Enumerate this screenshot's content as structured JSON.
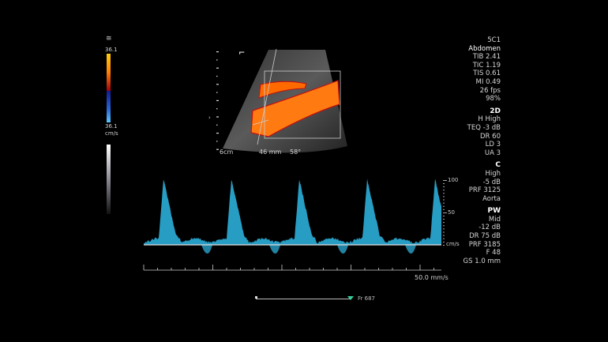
{
  "probe": {
    "transducer": "5C1",
    "preset": "Abdomen",
    "tib": "TIB 2.41",
    "tic": "TIC 1.19",
    "tis": "TIS 0.61",
    "mi": "MI 0.49",
    "fps": "26 fps",
    "power": "98%"
  },
  "mode_2d": {
    "title": "2D",
    "items": [
      "H High",
      "TEQ -3 dB",
      "DR 60",
      "LD 3",
      "UA 3"
    ]
  },
  "mode_c": {
    "title": "C",
    "items": [
      "High",
      "-5 dB",
      "PRF 3125",
      "Aorta"
    ]
  },
  "mode_pw": {
    "title": "PW",
    "items": [
      "Mid",
      "-12 dB",
      "DR 75 dB",
      "PRF 3185",
      "F 48",
      "GS 1.0 mm"
    ]
  },
  "color_bar": {
    "top_label": "36.1",
    "bottom_label": "36.1",
    "unit": "cm/s",
    "positive_colors": [
      "#ffd21a",
      "#ff8a00",
      "#b00010"
    ],
    "negative_colors": [
      "#1020a0",
      "#2a70e0",
      "#5ac8ff"
    ]
  },
  "image": {
    "depth": "6cm",
    "gate_depth": "46 mm",
    "angle": "58°",
    "orientation_marker": "⌐"
  },
  "spectrum": {
    "scale_labels": [
      "100",
      "50"
    ],
    "unit": "cm/s",
    "sweep_speed": "50.0 mm/s",
    "peak_velocity": 100,
    "cycle_count": 4,
    "trace_color": "#2fb9e6"
  },
  "cine": {
    "frame_label": "Fr 687",
    "position": 1.0
  }
}
